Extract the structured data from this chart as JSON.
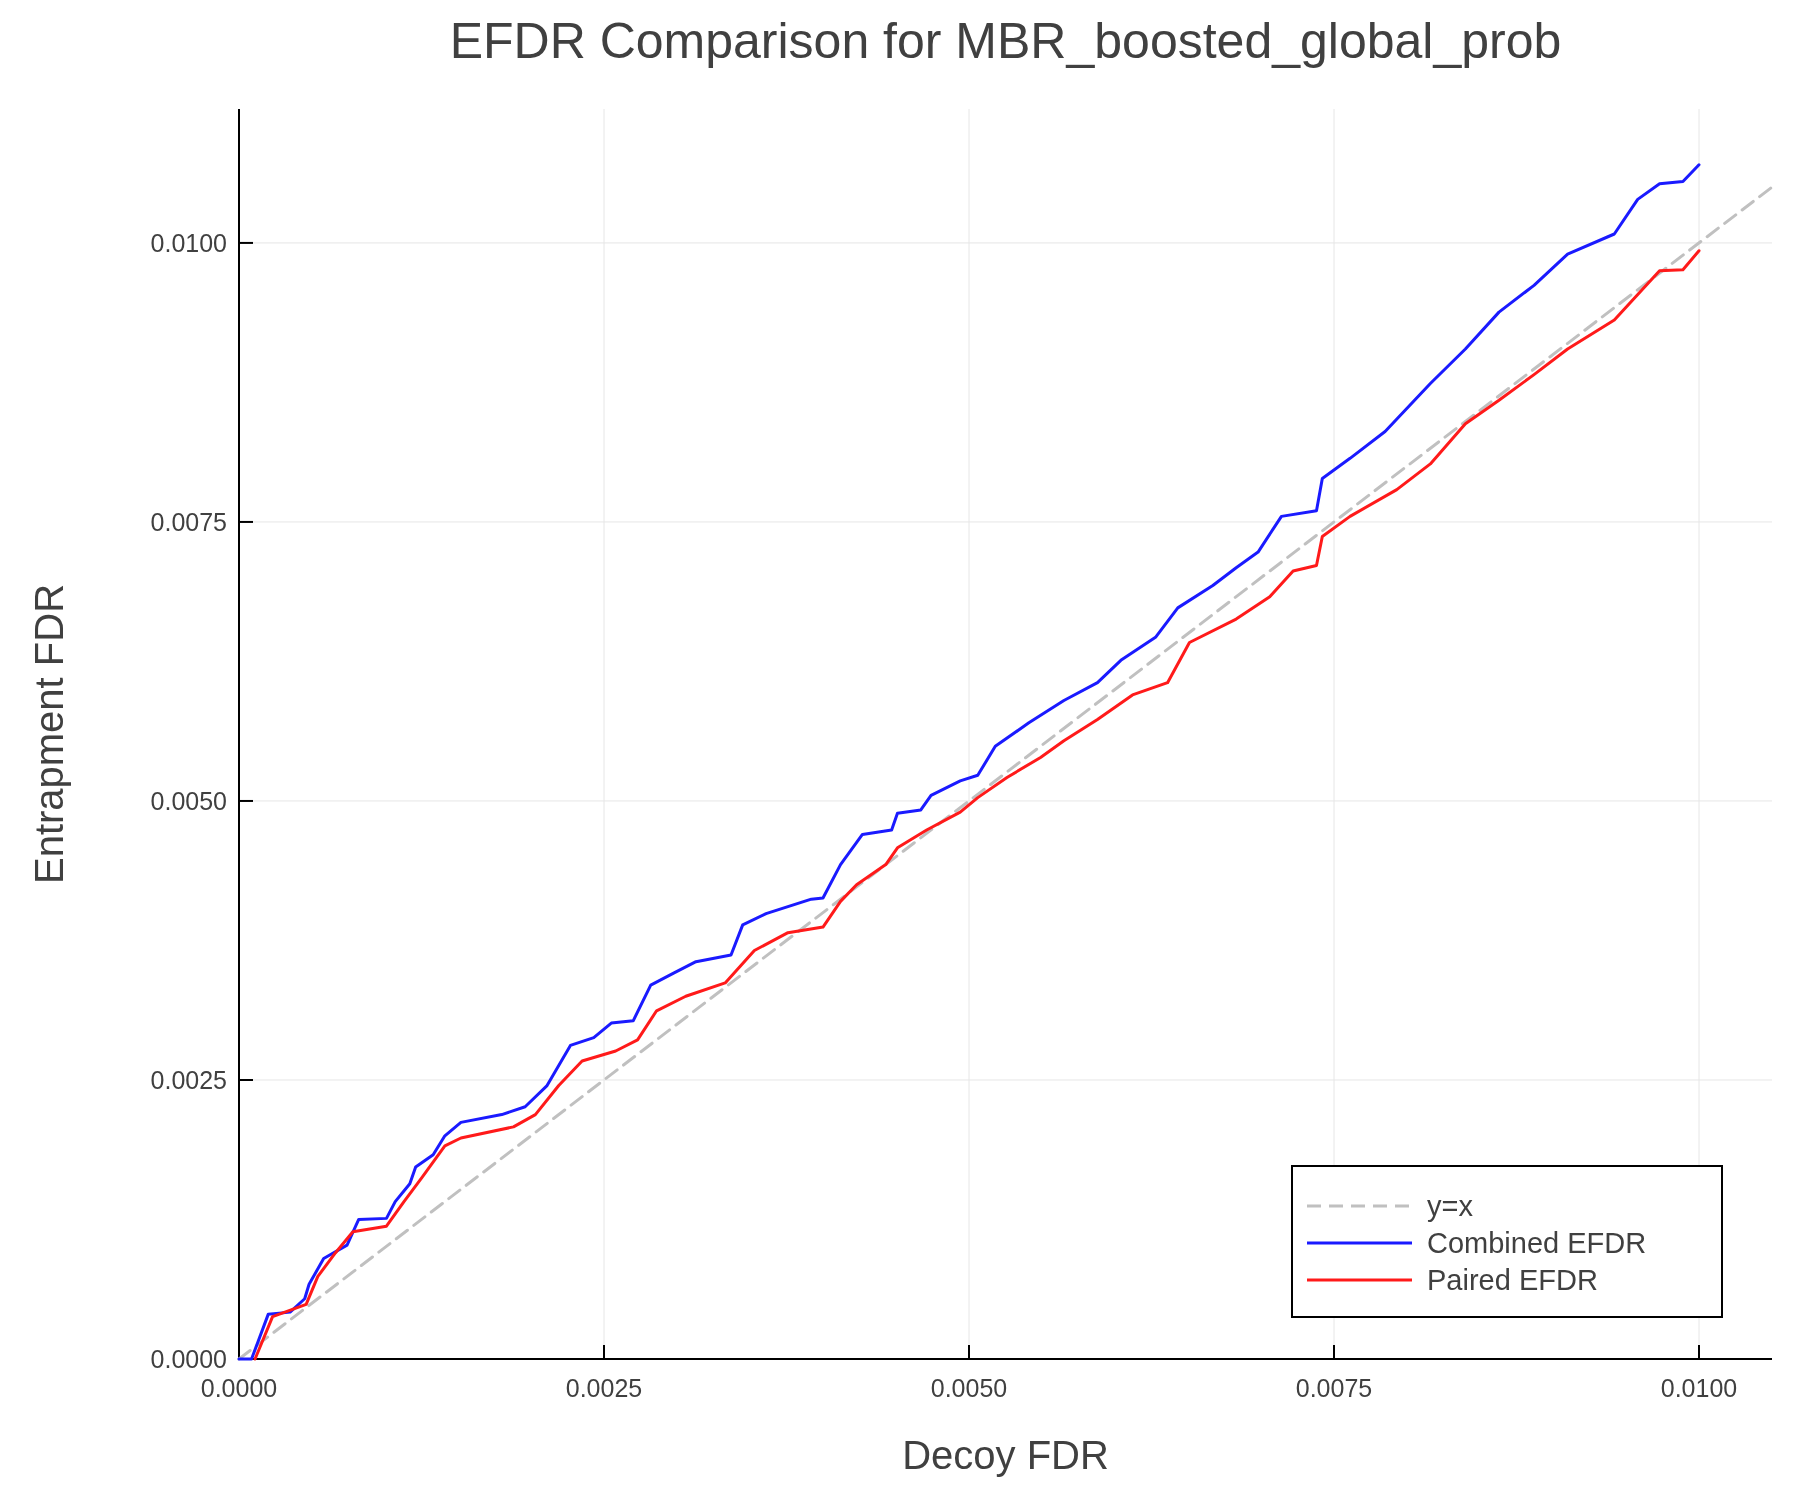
{
  "chart_data": {
    "type": "line",
    "title": "EFDR Comparison for MBR_boosted_global_prob",
    "xlabel": "Decoy FDR",
    "ylabel": "Entrapment FDR",
    "xlim": [
      0,
      0.0105
    ],
    "ylim": [
      0,
      0.0112
    ],
    "xticks": [
      {
        "value": 0,
        "label": "0.0000"
      },
      {
        "value": 0.0025,
        "label": "0.0025"
      },
      {
        "value": 0.005,
        "label": "0.0050"
      },
      {
        "value": 0.0075,
        "label": "0.0075"
      },
      {
        "value": 0.01,
        "label": "0.0100"
      }
    ],
    "yticks": [
      {
        "value": 0,
        "label": "0.0000"
      },
      {
        "value": 0.0025,
        "label": "0.0025"
      },
      {
        "value": 0.005,
        "label": "0.0050"
      },
      {
        "value": 0.0075,
        "label": "0.0075"
      },
      {
        "value": 0.01,
        "label": "0.0100"
      }
    ],
    "grid": true,
    "legend": "bottom right",
    "marker": "none",
    "series": [
      {
        "name": "y=x",
        "color": "#c0c0c0",
        "line_style": "dashed",
        "x": [
          0,
          0.0105
        ],
        "values": [
          0,
          0.0105
        ]
      },
      {
        "name": "Combined EFDR",
        "color": "#1a1aff",
        "line_style": "solid",
        "x": [
          0,
          8.6e-05,
          0.0002,
          0.00035,
          0.00045,
          0.00048,
          0.00058,
          0.00074,
          0.00082,
          0.00101,
          0.00107,
          0.00117,
          0.00121,
          0.00133,
          0.00141,
          0.00152,
          0.0018,
          0.00196,
          0.00211,
          0.00227,
          0.00243,
          0.00255,
          0.0027,
          0.00282,
          0.00298,
          0.00313,
          0.00337,
          0.00345,
          0.00361,
          0.00392,
          0.004,
          0.00412,
          0.00427,
          0.00447,
          0.00451,
          0.00467,
          0.00474,
          0.00494,
          0.00506,
          0.00518,
          0.00541,
          0.00565,
          0.00588,
          0.00604,
          0.00628,
          0.00643,
          0.00667,
          0.00683,
          0.00698,
          0.00714,
          0.00738,
          0.00742,
          0.00761,
          0.00785,
          0.00816,
          0.0084,
          0.00863,
          0.00887,
          0.0091,
          0.00942,
          0.00958,
          0.00973,
          0.00989,
          0.01
        ],
        "values": [
          0,
          0,
          0.0004,
          0.00042,
          0.00054,
          0.00067,
          0.0009,
          0.00102,
          0.00125,
          0.00126,
          0.00141,
          0.00157,
          0.00172,
          0.00183,
          0.002,
          0.00212,
          0.00219,
          0.00226,
          0.00245,
          0.00281,
          0.00288,
          0.00301,
          0.00303,
          0.00335,
          0.00346,
          0.00356,
          0.00362,
          0.00389,
          0.00399,
          0.00412,
          0.00413,
          0.00443,
          0.0047,
          0.00474,
          0.00489,
          0.00492,
          0.00505,
          0.00518,
          0.00523,
          0.00549,
          0.0057,
          0.0059,
          0.00606,
          0.00626,
          0.00647,
          0.00673,
          0.00693,
          0.00709,
          0.00723,
          0.00755,
          0.0076,
          0.00789,
          0.00807,
          0.00831,
          0.00874,
          0.00905,
          0.00938,
          0.00962,
          0.0099,
          0.01008,
          0.01039,
          0.01053,
          0.01055,
          0.0107
        ]
      },
      {
        "name": "Paired EFDR",
        "color": "#ff1a1a",
        "line_style": "solid",
        "x": [
          0.00011,
          0.00023,
          0.00046,
          0.00054,
          0.00066,
          0.00078,
          0.00101,
          0.00113,
          0.00125,
          0.00141,
          0.00152,
          0.00188,
          0.00203,
          0.00219,
          0.00235,
          0.00258,
          0.00273,
          0.00286,
          0.00306,
          0.00333,
          0.00353,
          0.00376,
          0.004,
          0.00412,
          0.00423,
          0.00443,
          0.00451,
          0.00471,
          0.00494,
          0.00506,
          0.00526,
          0.00549,
          0.00565,
          0.00588,
          0.00612,
          0.00636,
          0.00651,
          0.00683,
          0.00706,
          0.00722,
          0.00738,
          0.00742,
          0.00761,
          0.00793,
          0.00816,
          0.0084,
          0.00863,
          0.00887,
          0.0091,
          0.00942,
          0.00973,
          0.00989,
          0.01
        ],
        "values": [
          0,
          0.00038,
          0.00049,
          0.00074,
          0.00095,
          0.00114,
          0.00119,
          0.00141,
          0.00162,
          0.00191,
          0.00198,
          0.00208,
          0.00219,
          0.00245,
          0.00267,
          0.00276,
          0.00286,
          0.00312,
          0.00325,
          0.00337,
          0.00366,
          0.00382,
          0.00387,
          0.0041,
          0.00425,
          0.00443,
          0.00458,
          0.00474,
          0.0049,
          0.00503,
          0.00521,
          0.00539,
          0.00554,
          0.00573,
          0.00595,
          0.00606,
          0.00642,
          0.00663,
          0.00683,
          0.00706,
          0.00711,
          0.00737,
          0.00755,
          0.00779,
          0.00802,
          0.00838,
          0.00859,
          0.00882,
          0.00905,
          0.00931,
          0.00975,
          0.00976,
          0.00993
        ]
      }
    ]
  }
}
